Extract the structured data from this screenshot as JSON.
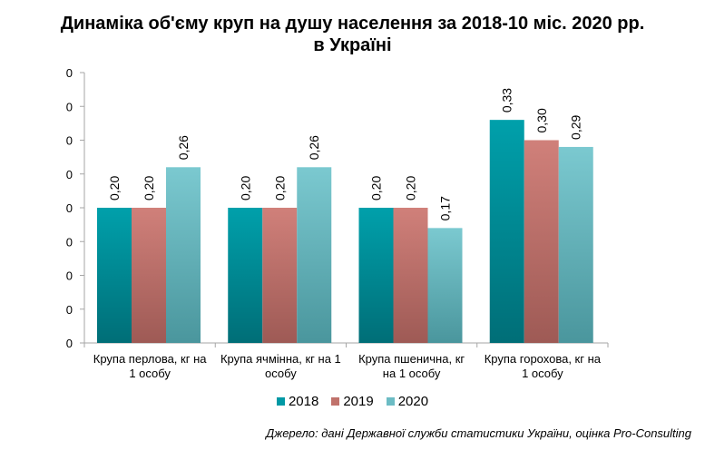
{
  "title_line1": "Динаміка об'єму круп на душу населення за 2018-10 міс. 2020 рр.",
  "title_line2": "в Україні",
  "source": "Джерело: дані Державної служби статистики України, оцінка Pro-Consulting",
  "chart_data": {
    "type": "bar",
    "categories": [
      [
        "Крупа перлова, кг на",
        "1 особу"
      ],
      [
        "Крупа ячмінна, кг на 1",
        "особу"
      ],
      [
        "Крупа пшенична, кг",
        "на 1 особу"
      ],
      [
        "Крупа горохова, кг на",
        "1 особу"
      ]
    ],
    "series": [
      {
        "name": "2018",
        "values": [
          0.2,
          0.2,
          0.2,
          0.33
        ],
        "labels": [
          "0,20",
          "0,20",
          "0,20",
          "0,33"
        ]
      },
      {
        "name": "2019",
        "values": [
          0.2,
          0.2,
          0.2,
          0.3
        ],
        "labels": [
          "0,20",
          "0,20",
          "0,20",
          "0,30"
        ]
      },
      {
        "name": "2020",
        "values": [
          0.26,
          0.26,
          0.17,
          0.29
        ],
        "labels": [
          "0,26",
          "0,26",
          "0,17",
          "0,29"
        ]
      }
    ],
    "ylim": [
      0,
      0.4
    ],
    "yticks": [
      0,
      0.05,
      0.1,
      0.15,
      0.2,
      0.25,
      0.3,
      0.35,
      0.4
    ],
    "ytick_labels": [
      "0",
      "0",
      "0",
      "0",
      "0",
      "0",
      "0",
      "0",
      "0"
    ],
    "colors": {
      "2018": [
        "#00a0ab",
        "#006e77"
      ],
      "2019": [
        "#d0807a",
        "#9e5a55"
      ],
      "2020": [
        "#7bc9d0",
        "#4a969d"
      ]
    },
    "legend_colors": {
      "2018": "#0099a5",
      "2019": "#c0726b",
      "2020": "#6cbcc4"
    },
    "legend": "bottom",
    "grid": false
  }
}
